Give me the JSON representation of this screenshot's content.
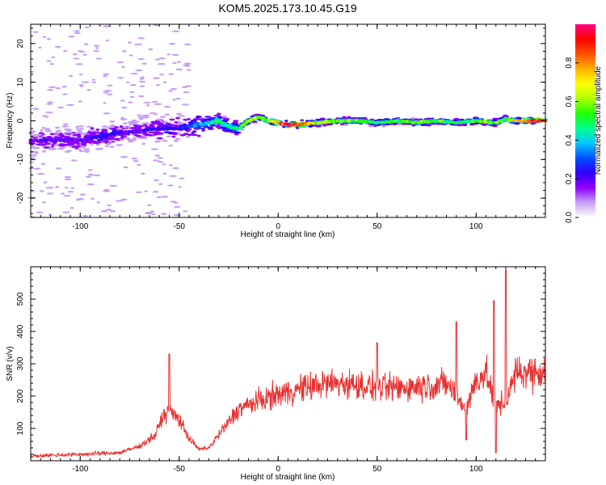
{
  "figure": {
    "title": "KOM5.2025.173.10.45.G19"
  },
  "chart_data": [
    {
      "type": "heatmap",
      "panel": "spectrogram",
      "xlabel": "Height of straight line (km)",
      "ylabel": "Frequency (Hz)",
      "xlim": [
        -125,
        135
      ],
      "ylim": [
        -25,
        25
      ],
      "xticks": [
        -100,
        -50,
        0,
        50,
        100
      ],
      "yticks": [
        -20,
        -10,
        0,
        10,
        20
      ],
      "colorbar": {
        "label": "Normalized spectral amplitude",
        "range": [
          0,
          1
        ],
        "ticks": [
          0.0,
          0.2,
          0.4,
          0.6,
          0.8
        ],
        "tick_labels": [
          "0.0",
          "0.2",
          "0.4",
          "0.6",
          "0.8"
        ],
        "colors": [
          "#ffffff",
          "#c8a0f5",
          "#8f00ff",
          "#3000ff",
          "#0050ff",
          "#00c8ff",
          "#00ff90",
          "#20ff00",
          "#b0ff00",
          "#ffff00",
          "#ffb000",
          "#ff5000",
          "#ff0000",
          "#ff0080"
        ]
      },
      "ridge": {
        "description_values": "dominant frequency track (Hz) vs height (km)",
        "x": [
          -100,
          -90,
          -80,
          -70,
          -60,
          -50,
          -40,
          -30,
          -25,
          -20,
          -15,
          -10,
          -5,
          0,
          5,
          10,
          20,
          30,
          40,
          50,
          60,
          70,
          80,
          90,
          100,
          110,
          115,
          120,
          130
        ],
        "y": [
          -5,
          -4,
          -3,
          -2.5,
          -2,
          -2,
          -1,
          0,
          -1.5,
          -2,
          0,
          1,
          0,
          -0.5,
          -1,
          -1,
          -0.5,
          0,
          0,
          -0.5,
          0,
          -0.5,
          0,
          -0.5,
          0,
          -0.5,
          0.5,
          0,
          0
        ],
        "amplitude": [
          0.15,
          0.2,
          0.18,
          0.15,
          0.2,
          0.2,
          0.3,
          0.45,
          0.4,
          0.45,
          0.55,
          0.6,
          0.5,
          0.8,
          0.95,
          0.9,
          0.6,
          0.55,
          0.5,
          0.45,
          0.5,
          0.55,
          0.5,
          0.45,
          0.5,
          0.55,
          0.45,
          0.7,
          0.9
        ]
      }
    },
    {
      "type": "line",
      "panel": "snr",
      "xlabel": "Height of straight line (km)",
      "ylabel": "SNR (v/v)",
      "xlim": [
        -125,
        135
      ],
      "ylim": [
        0,
        600
      ],
      "xticks": [
        -100,
        -50,
        0,
        50,
        100
      ],
      "yticks": [
        100,
        200,
        300,
        400,
        500
      ],
      "color": "#e83030",
      "trend": {
        "x": [
          -125,
          -100,
          -80,
          -70,
          -62,
          -58,
          -55,
          -50,
          -45,
          -40,
          -35,
          -30,
          -25,
          -20,
          -10,
          0,
          10,
          20,
          30,
          40,
          50,
          60,
          70,
          80,
          85,
          90,
          95,
          100,
          105,
          110,
          115,
          120,
          125,
          130,
          135
        ],
        "y": [
          15,
          20,
          25,
          45,
          80,
          140,
          150,
          130,
          70,
          35,
          40,
          80,
          120,
          160,
          185,
          205,
          220,
          235,
          240,
          235,
          225,
          225,
          230,
          235,
          240,
          200,
          160,
          250,
          270,
          170,
          180,
          270,
          275,
          275,
          280
        ]
      },
      "spikes": [
        {
          "x": -55,
          "y": 330
        },
        {
          "x": 50,
          "y": 365
        },
        {
          "x": 90,
          "y": 430
        },
        {
          "x": 95,
          "y": 65
        },
        {
          "x": 109,
          "y": 495
        },
        {
          "x": 110,
          "y": 25
        },
        {
          "x": 115,
          "y": 590
        }
      ]
    }
  ]
}
